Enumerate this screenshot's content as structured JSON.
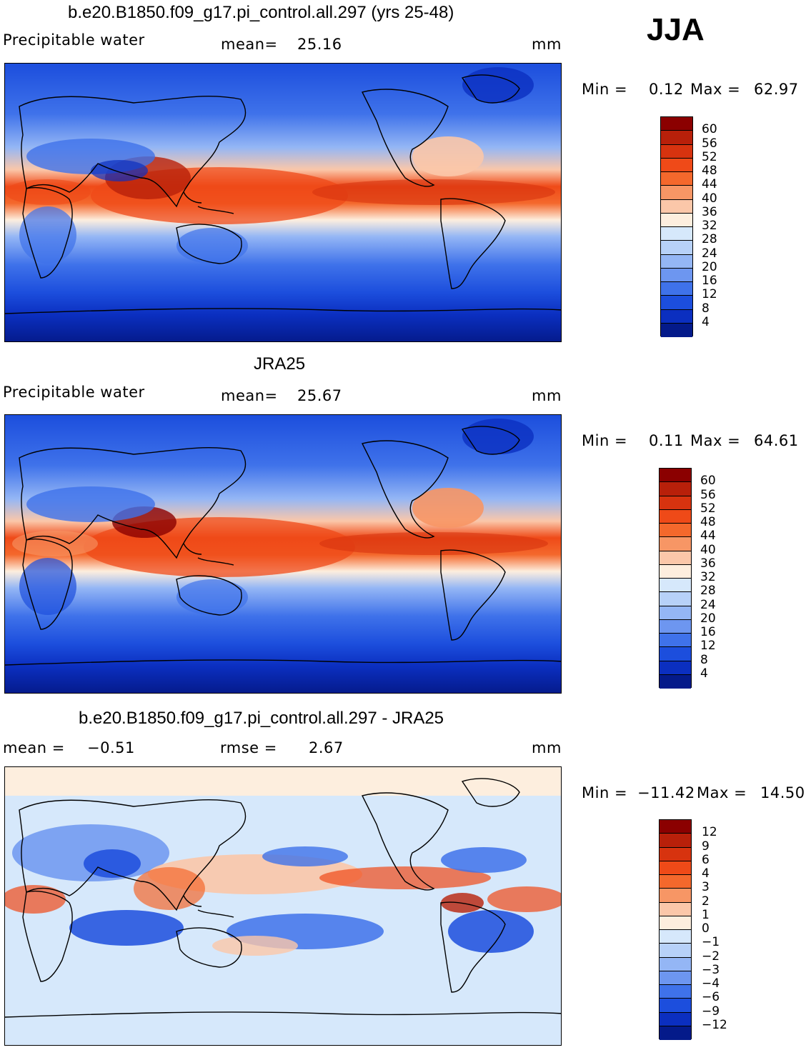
{
  "season": "JJA",
  "units": "mm",
  "panels": [
    {
      "title": "b.e20.B1850.f09_g17.pi_control.all.297 (yrs 25-48)",
      "variable": "Precipitable water",
      "stat1_label": "mean=",
      "stat1_value": "25.16",
      "stat2_label": "",
      "stat2_value": "",
      "units": "mm",
      "min_label": "Min =",
      "min_value": "0.12",
      "max_label": "Max =",
      "max_value": "62.97",
      "colorbar_labels": [
        "60",
        "56",
        "52",
        "48",
        "44",
        "40",
        "36",
        "32",
        "28",
        "24",
        "20",
        "16",
        "12",
        "8",
        "4"
      ],
      "colorbar_colors": [
        "#8b0000",
        "#b8200a",
        "#d7330f",
        "#ef4a18",
        "#f4682c",
        "#f79665",
        "#fbc7a9",
        "#fdeede",
        "#d6e8fb",
        "#b7d1f8",
        "#94b6f5",
        "#6d96f0",
        "#3f72ea",
        "#1c4edd",
        "#0b2fc0",
        "#041a8a"
      ]
    },
    {
      "title": "JRA25",
      "variable": "Precipitable water",
      "stat1_label": "mean=",
      "stat1_value": "25.67",
      "stat2_label": "",
      "stat2_value": "",
      "units": "mm",
      "min_label": "Min =",
      "min_value": "0.11",
      "max_label": "Max =",
      "max_value": "64.61",
      "colorbar_labels": [
        "60",
        "56",
        "52",
        "48",
        "44",
        "40",
        "36",
        "32",
        "28",
        "24",
        "20",
        "16",
        "12",
        "8",
        "4"
      ],
      "colorbar_colors": [
        "#8b0000",
        "#b8200a",
        "#d7330f",
        "#ef4a18",
        "#f4682c",
        "#f79665",
        "#fbc7a9",
        "#fdeede",
        "#d6e8fb",
        "#b7d1f8",
        "#94b6f5",
        "#6d96f0",
        "#3f72ea",
        "#1c4edd",
        "#0b2fc0",
        "#041a8a"
      ]
    },
    {
      "title": "b.e20.B1850.f09_g17.pi_control.all.297 - JRA25",
      "variable": "",
      "stat1_label": "mean =",
      "stat1_value": "−0.51",
      "stat2_label": "rmse =",
      "stat2_value": "2.67",
      "units": "mm",
      "min_label": "Min =",
      "min_value": "−11.42",
      "max_label": "Max =",
      "max_value": "14.50",
      "colorbar_labels": [
        "12",
        "9",
        "6",
        "4",
        "3",
        "2",
        "1",
        "0",
        "−1",
        "−2",
        "−3",
        "−4",
        "−6",
        "−9",
        "−12"
      ],
      "colorbar_colors": [
        "#8b0000",
        "#b8200a",
        "#d7330f",
        "#ef4a18",
        "#f4682c",
        "#f79665",
        "#fbc7a9",
        "#fdeede",
        "#d6e8fb",
        "#b7d1f8",
        "#94b6f5",
        "#6d96f0",
        "#3f72ea",
        "#1c4edd",
        "#0b2fc0",
        "#041a8a"
      ]
    }
  ]
}
